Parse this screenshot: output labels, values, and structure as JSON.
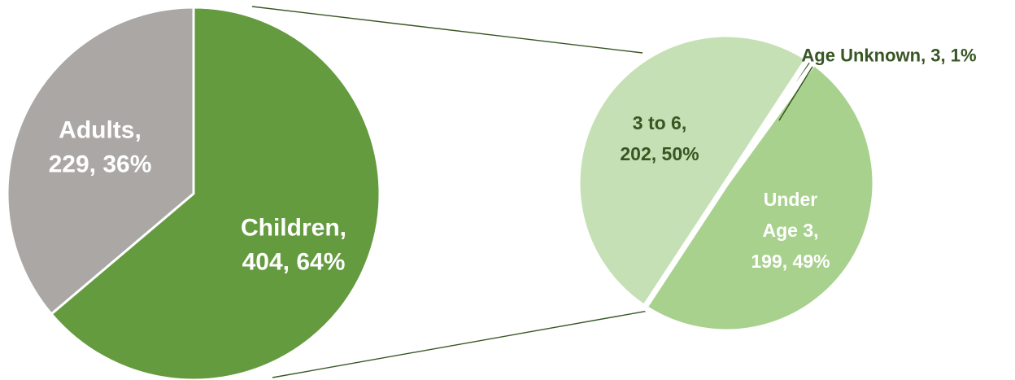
{
  "chart_data": [
    {
      "type": "pie",
      "title": "",
      "slices": [
        {
          "name": "Adults",
          "value": 229,
          "percent": "36%",
          "color": "#aaa7a5",
          "label_lines": [
            "Adults,",
            "229, 36%"
          ],
          "label_color": "#ffffff"
        },
        {
          "name": "Children",
          "value": 404,
          "percent": "64%",
          "color": "#649b3f",
          "label_lines": [
            "Children,",
            "404, 64%"
          ],
          "label_color": "#ffffff"
        }
      ]
    },
    {
      "type": "pie",
      "title": "",
      "exploded_from": "Children",
      "slices": [
        {
          "name": "Under Age 3",
          "value": 199,
          "percent": "49%",
          "color": "#a9d18e",
          "label_lines": [
            "Under",
            "Age 3,",
            "199, 49%"
          ],
          "label_color": "#ffffff"
        },
        {
          "name": "3 to 6",
          "value": 202,
          "percent": "50%",
          "color": "#c5e0b4",
          "label_lines": [
            "3 to 6,",
            "202, 50%"
          ],
          "label_color": "#375623"
        },
        {
          "name": "Age Unknown",
          "value": 3,
          "percent": "1%",
          "color": "#375623",
          "label_lines": [
            "Age Unknown, 3, 1%"
          ],
          "label_color": "#375623"
        }
      ]
    }
  ]
}
